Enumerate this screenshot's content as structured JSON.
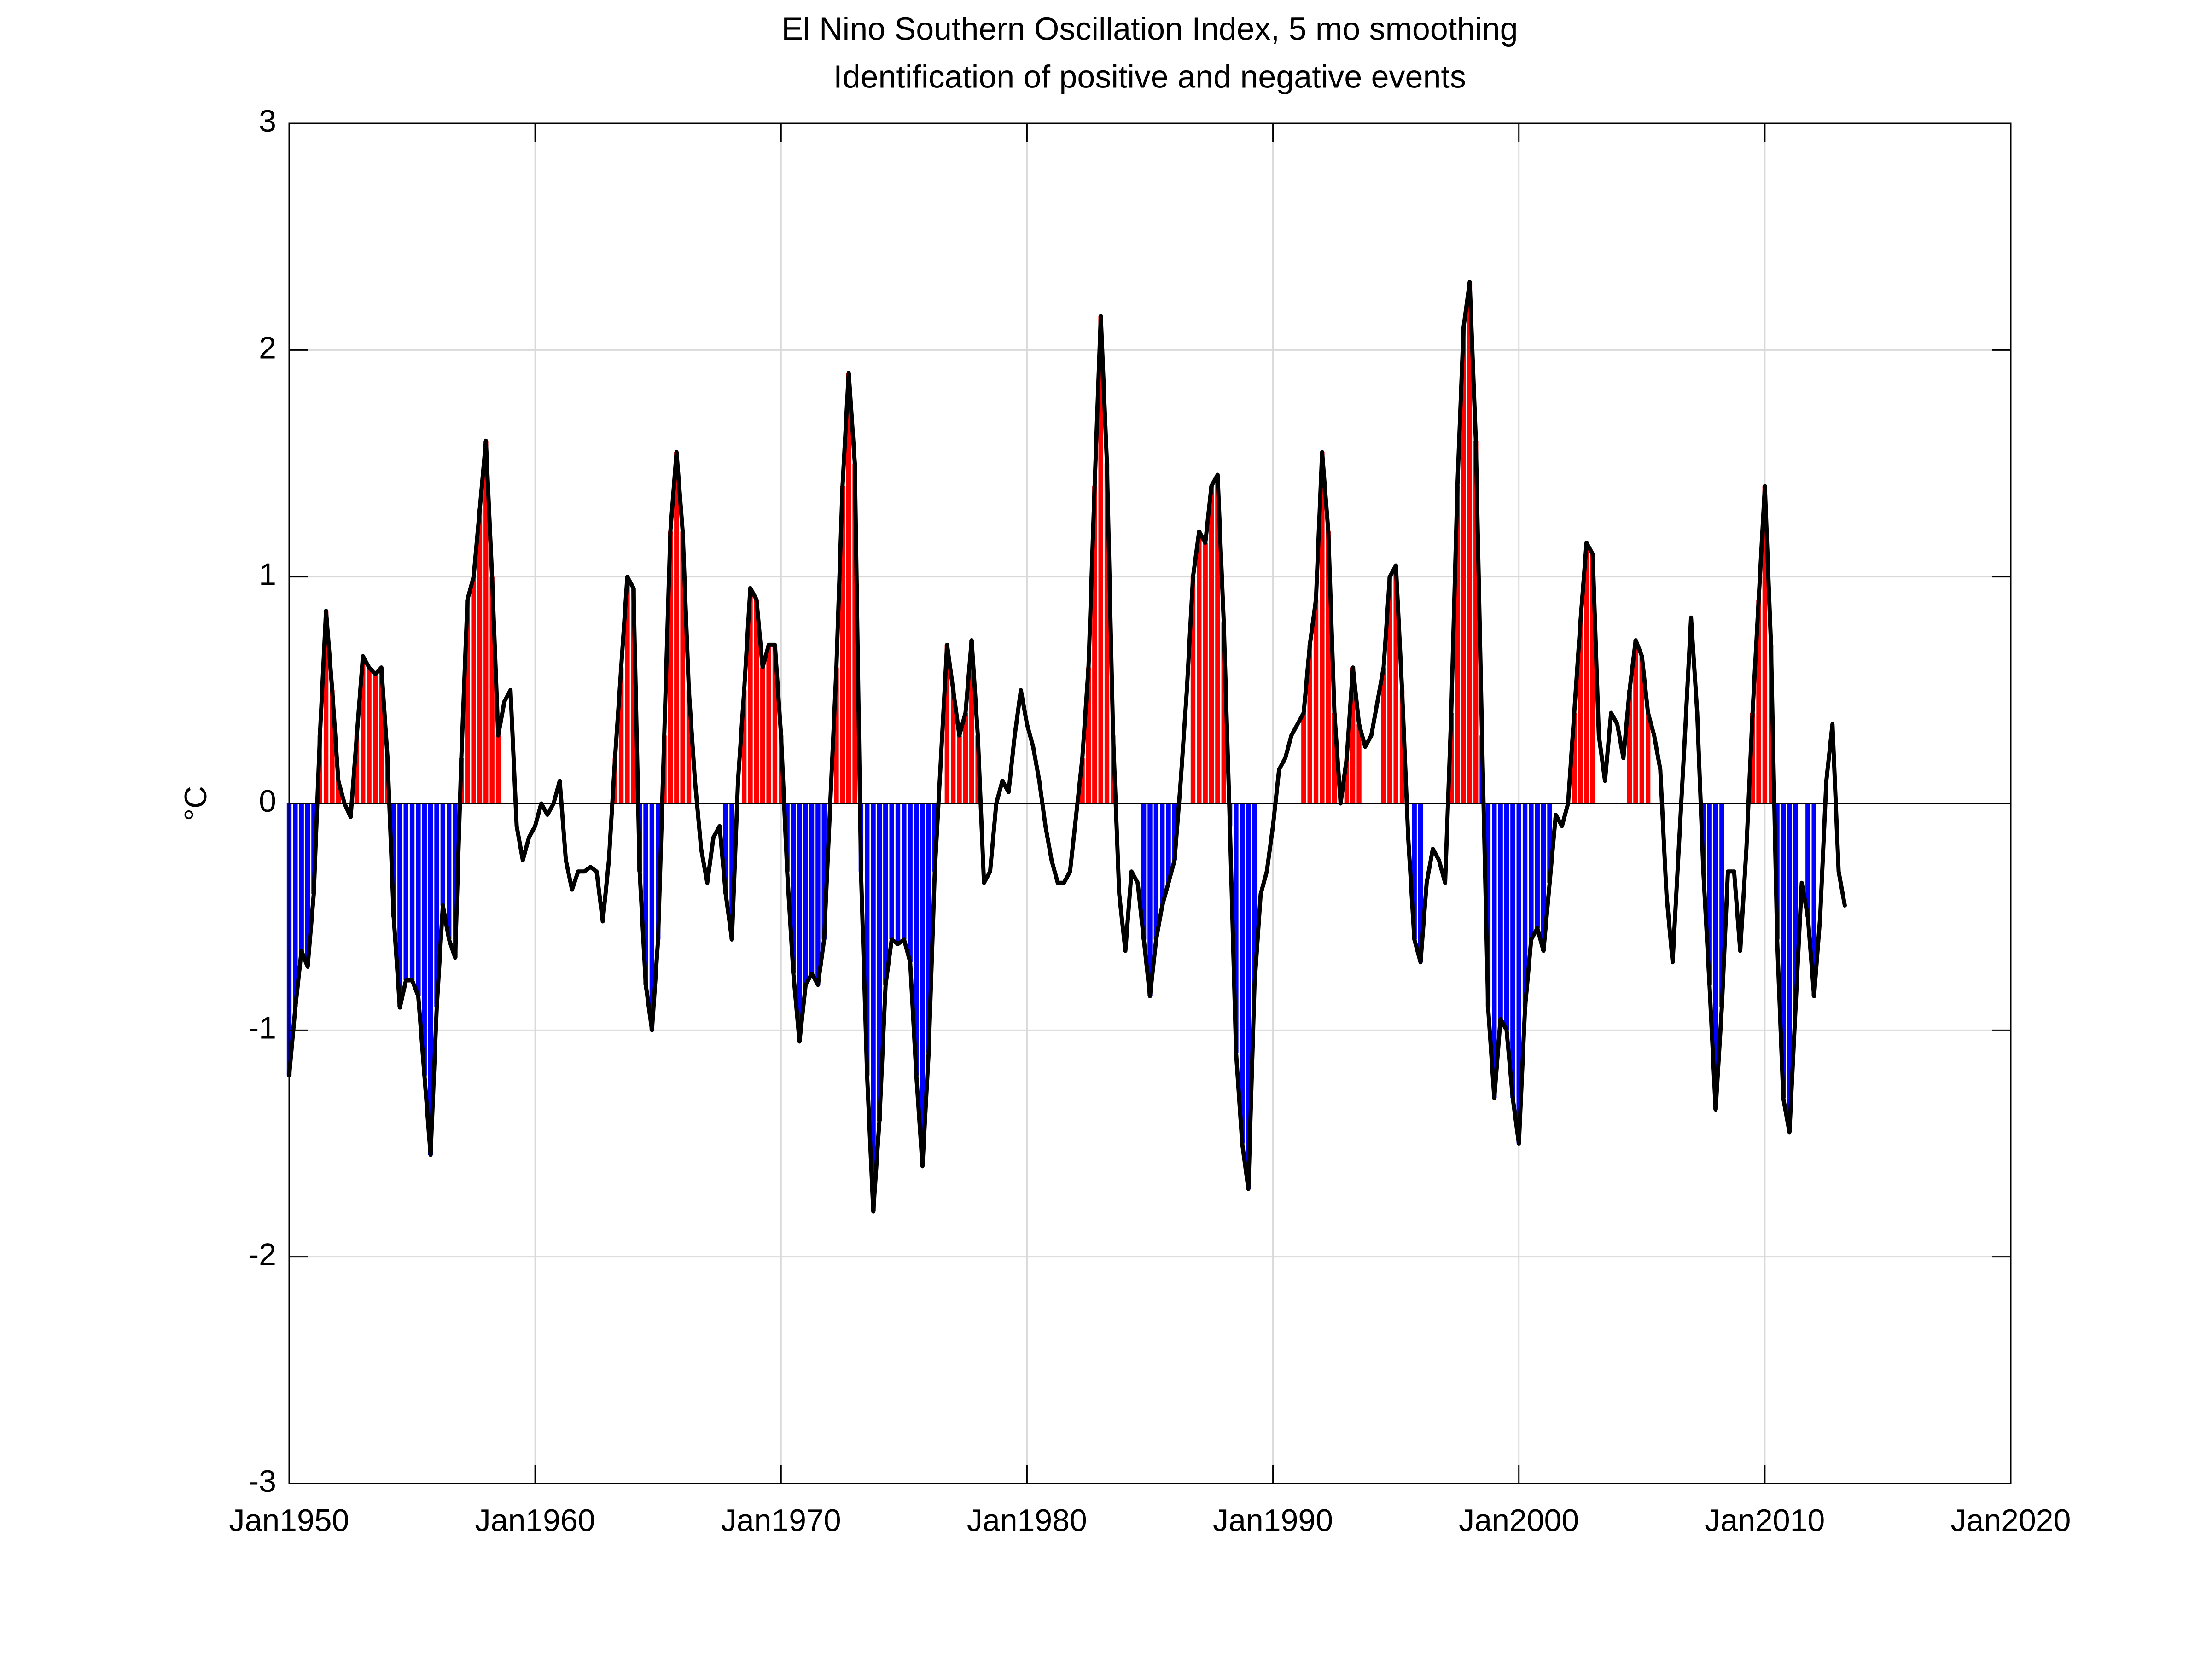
{
  "chart_data": {
    "type": "line",
    "title": "El Nino Southern Oscillation Index, 5 mo smoothing",
    "subtitle": "Identification of positive and negative events",
    "y_label": "°C",
    "grid": true,
    "xlim": [
      "1950-01",
      "2020-01"
    ],
    "xticks": [
      {
        "value": "1950-01",
        "label": "Jan1950"
      },
      {
        "value": "1960-01",
        "label": "Jan1960"
      },
      {
        "value": "1970-01",
        "label": "Jan1970"
      },
      {
        "value": "1980-01",
        "label": "Jan1980"
      },
      {
        "value": "1990-01",
        "label": "Jan1990"
      },
      {
        "value": "2000-01",
        "label": "Jan2000"
      },
      {
        "value": "2010-01",
        "label": "Jan2010"
      },
      {
        "value": "2020-01",
        "label": "Jan2020"
      }
    ],
    "ylim": [
      -3,
      3
    ],
    "yticks": [
      -3,
      -2,
      -1,
      0,
      1,
      2,
      3
    ],
    "x": [
      "1950-01",
      "1950-04",
      "1950-07",
      "1950-10",
      "1951-01",
      "1951-04",
      "1951-07",
      "1951-10",
      "1952-01",
      "1952-04",
      "1952-07",
      "1952-10",
      "1953-01",
      "1953-04",
      "1953-07",
      "1953-10",
      "1954-01",
      "1954-04",
      "1954-07",
      "1954-10",
      "1955-01",
      "1955-04",
      "1955-07",
      "1955-10",
      "1956-01",
      "1956-04",
      "1956-07",
      "1956-10",
      "1957-01",
      "1957-04",
      "1957-07",
      "1957-10",
      "1958-01",
      "1958-04",
      "1958-07",
      "1958-10",
      "1959-01",
      "1959-04",
      "1959-07",
      "1959-10",
      "1960-01",
      "1960-04",
      "1960-07",
      "1960-10",
      "1961-01",
      "1961-04",
      "1961-07",
      "1961-10",
      "1962-01",
      "1962-04",
      "1962-07",
      "1962-10",
      "1963-01",
      "1963-04",
      "1963-07",
      "1963-10",
      "1964-01",
      "1964-04",
      "1964-07",
      "1964-10",
      "1965-01",
      "1965-04",
      "1965-07",
      "1965-10",
      "1966-01",
      "1966-04",
      "1966-07",
      "1966-10",
      "1967-01",
      "1967-04",
      "1967-07",
      "1967-10",
      "1968-01",
      "1968-04",
      "1968-07",
      "1968-10",
      "1969-01",
      "1969-04",
      "1969-07",
      "1969-10",
      "1970-01",
      "1970-04",
      "1970-07",
      "1970-10",
      "1971-01",
      "1971-04",
      "1971-07",
      "1971-10",
      "1972-01",
      "1972-04",
      "1972-07",
      "1972-10",
      "1973-01",
      "1973-04",
      "1973-07",
      "1973-10",
      "1974-01",
      "1974-04",
      "1974-07",
      "1974-10",
      "1975-01",
      "1975-04",
      "1975-07",
      "1975-10",
      "1976-01",
      "1976-04",
      "1976-07",
      "1976-10",
      "1977-01",
      "1977-04",
      "1977-07",
      "1977-10",
      "1978-01",
      "1978-04",
      "1978-07",
      "1978-10",
      "1979-01",
      "1979-04",
      "1979-07",
      "1979-10",
      "1980-01",
      "1980-04",
      "1980-07",
      "1980-10",
      "1981-01",
      "1981-04",
      "1981-07",
      "1981-10",
      "1982-01",
      "1982-04",
      "1982-07",
      "1982-10",
      "1983-01",
      "1983-04",
      "1983-07",
      "1983-10",
      "1984-01",
      "1984-04",
      "1984-07",
      "1984-10",
      "1985-01",
      "1985-04",
      "1985-07",
      "1985-10",
      "1986-01",
      "1986-04",
      "1986-07",
      "1986-10",
      "1987-01",
      "1987-04",
      "1987-07",
      "1987-10",
      "1988-01",
      "1988-04",
      "1988-07",
      "1988-10",
      "1989-01",
      "1989-04",
      "1989-07",
      "1989-10",
      "1990-01",
      "1990-04",
      "1990-07",
      "1990-10",
      "1991-01",
      "1991-04",
      "1991-07",
      "1991-10",
      "1992-01",
      "1992-04",
      "1992-07",
      "1992-10",
      "1993-01",
      "1993-04",
      "1993-07",
      "1993-10",
      "1994-01",
      "1994-04",
      "1994-07",
      "1994-10",
      "1995-01",
      "1995-04",
      "1995-07",
      "1995-10",
      "1996-01",
      "1996-04",
      "1996-07",
      "1996-10",
      "1997-01",
      "1997-04",
      "1997-07",
      "1997-10",
      "1998-01",
      "1998-04",
      "1998-07",
      "1998-10",
      "1999-01",
      "1999-04",
      "1999-07",
      "1999-10",
      "2000-01",
      "2000-04",
      "2000-07",
      "2000-10",
      "2001-01",
      "2001-04",
      "2001-07",
      "2001-10",
      "2002-01",
      "2002-04",
      "2002-07",
      "2002-10",
      "2003-01",
      "2003-04",
      "2003-07",
      "2003-10",
      "2004-01",
      "2004-04",
      "2004-07",
      "2004-10",
      "2005-01",
      "2005-04",
      "2005-07",
      "2005-10",
      "2006-01",
      "2006-04",
      "2006-07",
      "2006-10",
      "2007-01",
      "2007-04",
      "2007-07",
      "2007-10",
      "2008-01",
      "2008-04",
      "2008-07",
      "2008-10",
      "2009-01",
      "2009-04",
      "2009-07",
      "2009-10",
      "2010-01",
      "2010-04",
      "2010-07",
      "2010-10",
      "2011-01",
      "2011-04",
      "2011-07",
      "2011-10",
      "2012-01",
      "2012-04",
      "2012-07",
      "2012-10",
      "2013-01",
      "2013-04"
    ],
    "series": [
      {
        "color": "#000000",
        "values": [
          -1.2,
          -0.9,
          -0.65,
          -0.72,
          -0.4,
          0.3,
          0.85,
          0.5,
          0.1,
          0.0,
          -0.06,
          0.3,
          0.65,
          0.6,
          0.57,
          0.6,
          0.2,
          -0.5,
          -0.9,
          -0.78,
          -0.78,
          -0.85,
          -1.2,
          -1.55,
          -0.9,
          -0.45,
          -0.6,
          -0.68,
          0.2,
          0.9,
          1.0,
          1.3,
          1.6,
          1.0,
          0.3,
          0.45,
          0.5,
          -0.1,
          -0.25,
          -0.15,
          -0.1,
          0.0,
          -0.05,
          0.0,
          0.1,
          -0.25,
          -0.38,
          -0.3,
          -0.3,
          -0.28,
          -0.3,
          -0.52,
          -0.25,
          0.2,
          0.6,
          1.0,
          0.95,
          -0.3,
          -0.8,
          -1.0,
          -0.6,
          0.3,
          1.2,
          1.55,
          1.2,
          0.5,
          0.1,
          -0.2,
          -0.35,
          -0.15,
          -0.1,
          -0.4,
          -0.6,
          0.1,
          0.5,
          0.95,
          0.9,
          0.6,
          0.7,
          0.7,
          0.3,
          -0.3,
          -0.75,
          -1.05,
          -0.8,
          -0.75,
          -0.8,
          -0.6,
          0.0,
          0.6,
          1.4,
          1.9,
          1.5,
          -0.3,
          -1.2,
          -1.8,
          -1.4,
          -0.8,
          -0.6,
          -0.62,
          -0.6,
          -0.7,
          -1.2,
          -1.6,
          -1.1,
          -0.3,
          0.2,
          0.7,
          0.5,
          0.3,
          0.4,
          0.72,
          0.3,
          -0.35,
          -0.3,
          0.0,
          0.1,
          0.05,
          0.3,
          0.5,
          0.35,
          0.25,
          0.1,
          -0.1,
          -0.25,
          -0.35,
          -0.35,
          -0.3,
          -0.05,
          0.2,
          0.6,
          1.4,
          2.15,
          1.5,
          0.3,
          -0.4,
          -0.65,
          -0.3,
          -0.35,
          -0.6,
          -0.85,
          -0.6,
          -0.45,
          -0.35,
          -0.25,
          0.1,
          0.5,
          1.0,
          1.2,
          1.15,
          1.4,
          1.45,
          0.8,
          -0.1,
          -1.1,
          -1.5,
          -1.7,
          -0.8,
          -0.4,
          -0.3,
          -0.1,
          0.15,
          0.2,
          0.3,
          0.35,
          0.4,
          0.7,
          0.9,
          1.55,
          1.2,
          0.4,
          0.0,
          0.2,
          0.6,
          0.35,
          0.25,
          0.3,
          0.45,
          0.6,
          1.0,
          1.05,
          0.5,
          -0.15,
          -0.6,
          -0.7,
          -0.35,
          -0.2,
          -0.25,
          -0.35,
          0.4,
          1.4,
          2.1,
          2.3,
          1.6,
          0.3,
          -0.9,
          -1.3,
          -0.95,
          -1.0,
          -1.3,
          -1.5,
          -0.9,
          -0.6,
          -0.55,
          -0.65,
          -0.35,
          -0.05,
          -0.1,
          0.0,
          0.4,
          0.8,
          1.15,
          1.1,
          0.3,
          0.1,
          0.4,
          0.35,
          0.2,
          0.5,
          0.72,
          0.65,
          0.4,
          0.3,
          0.15,
          -0.4,
          -0.7,
          -0.2,
          0.3,
          0.82,
          0.4,
          -0.3,
          -0.8,
          -1.35,
          -0.9,
          -0.3,
          -0.3,
          -0.65,
          -0.2,
          0.4,
          0.9,
          1.4,
          0.7,
          -0.6,
          -1.3,
          -1.45,
          -0.9,
          -0.35,
          -0.5,
          -0.85,
          -0.5,
          0.1,
          0.35,
          -0.3,
          -0.45
        ]
      }
    ],
    "events": [
      {
        "start": "1950-01",
        "end": "1951-01",
        "color": "#0000ff"
      },
      {
        "start": "1951-04",
        "end": "1952-01",
        "color": "#ff0000"
      },
      {
        "start": "1952-10",
        "end": "1954-01",
        "color": "#ff0000"
      },
      {
        "start": "1954-04",
        "end": "1956-10",
        "color": "#0000ff"
      },
      {
        "start": "1957-01",
        "end": "1958-07",
        "color": "#ff0000"
      },
      {
        "start": "1963-04",
        "end": "1964-01",
        "color": "#ff0000"
      },
      {
        "start": "1964-04",
        "end": "1965-01",
        "color": "#0000ff"
      },
      {
        "start": "1965-04",
        "end": "1966-04",
        "color": "#ff0000"
      },
      {
        "start": "1967-10",
        "end": "1968-01",
        "color": "#0000ff"
      },
      {
        "start": "1968-07",
        "end": "1970-01",
        "color": "#ff0000"
      },
      {
        "start": "1970-04",
        "end": "1972-01",
        "color": "#0000ff"
      },
      {
        "start": "1972-04",
        "end": "1973-01",
        "color": "#ff0000"
      },
      {
        "start": "1973-04",
        "end": "1976-04",
        "color": "#0000ff"
      },
      {
        "start": "1976-10",
        "end": "1977-07",
        "color": "#ff0000"
      },
      {
        "start": "1977-10",
        "end": "1978-01",
        "color": "#ff0000"
      },
      {
        "start": "1982-04",
        "end": "1983-07",
        "color": "#ff0000"
      },
      {
        "start": "1984-10",
        "end": "1986-01",
        "color": "#0000ff"
      },
      {
        "start": "1986-10",
        "end": "1988-01",
        "color": "#ff0000"
      },
      {
        "start": "1988-04",
        "end": "1989-04",
        "color": "#0000ff"
      },
      {
        "start": "1991-04",
        "end": "1992-07",
        "color": "#ff0000"
      },
      {
        "start": "1993-01",
        "end": "1993-07",
        "color": "#ff0000"
      },
      {
        "start": "1994-07",
        "end": "1995-04",
        "color": "#ff0000"
      },
      {
        "start": "1995-10",
        "end": "1996-01",
        "color": "#0000ff"
      },
      {
        "start": "1997-04",
        "end": "1998-04",
        "color": "#ff0000"
      },
      {
        "start": "1998-07",
        "end": "2001-04",
        "color": "#0000ff"
      },
      {
        "start": "2002-04",
        "end": "2003-01",
        "color": "#ff0000"
      },
      {
        "start": "2004-07",
        "end": "2005-04",
        "color": "#ff0000"
      },
      {
        "start": "2007-07",
        "end": "2008-04",
        "color": "#0000ff"
      },
      {
        "start": "2009-07",
        "end": "2010-04",
        "color": "#ff0000"
      },
      {
        "start": "2010-07",
        "end": "2011-04",
        "color": "#0000ff"
      },
      {
        "start": "2011-10",
        "end": "2012-01",
        "color": "#0000ff"
      }
    ]
  }
}
